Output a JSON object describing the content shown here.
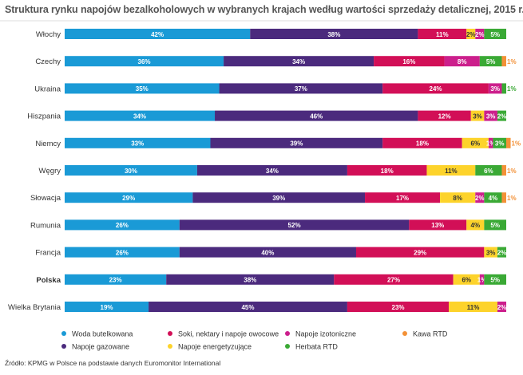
{
  "source": "Źródło: KPMG w Polsce na podstawie danych Euromonitor International",
  "chart_data": {
    "type": "bar",
    "orientation": "horizontal",
    "stacked": true,
    "title": "Struktura rynku napojów bezalkoholowych w wybranych krajach według wartości sprzedaży detalicznej, 2015 r.",
    "xlabel": "",
    "ylabel": "",
    "xlim": [
      0,
      100
    ],
    "legend_position": "bottom",
    "highlight_category": "Polska",
    "categories": [
      "Włochy",
      "Czechy",
      "Ukraina",
      "Hiszpania",
      "Niemcy",
      "Węgry",
      "Słowacja",
      "Rumunia",
      "Francja",
      "Polska",
      "Wielka Brytania"
    ],
    "series": [
      {
        "name": "Woda butelkowana",
        "color": "#1a9ad6",
        "values": [
          42,
          36,
          35,
          34,
          33,
          30,
          29,
          26,
          26,
          23,
          19
        ]
      },
      {
        "name": "Napoje gazowane",
        "color": "#4b2a7d",
        "values": [
          38,
          34,
          37,
          46,
          39,
          34,
          39,
          52,
          40,
          38,
          45
        ]
      },
      {
        "name": "Soki, nektary i napoje owocowe",
        "color": "#d20f57",
        "values": [
          11,
          16,
          24,
          12,
          18,
          18,
          17,
          13,
          29,
          27,
          23
        ]
      },
      {
        "name": "Napoje energetyzujące",
        "color": "#fdd32b",
        "values": [
          2,
          0,
          0,
          3,
          6,
          11,
          8,
          4,
          3,
          6,
          11
        ]
      },
      {
        "name": "Napoje izotoniczne",
        "color": "#cc1f8c",
        "values": [
          2,
          8,
          3,
          3,
          1,
          0,
          2,
          0,
          0,
          1,
          2
        ]
      },
      {
        "name": "Herbata RTD",
        "color": "#3aa935",
        "values": [
          5,
          5,
          1,
          2,
          3,
          6,
          4,
          5,
          2,
          5,
          0
        ]
      },
      {
        "name": "Kawa RTD",
        "color": "#f39137",
        "values": [
          0,
          1,
          0,
          0,
          1,
          1,
          1,
          0,
          0,
          0,
          0
        ]
      }
    ],
    "data_labels": [
      [
        "42%",
        "38%",
        "11%",
        "2%",
        "2%",
        "5%",
        ""
      ],
      [
        "36%",
        "34%",
        "16%",
        "",
        "8%",
        "5%",
        "1%"
      ],
      [
        "35%",
        "37%",
        "24%",
        "",
        "3%",
        "1%",
        ""
      ],
      [
        "34%",
        "46%",
        "12%",
        "3%",
        "3%",
        "2%",
        ""
      ],
      [
        "33%",
        "39%",
        "18%",
        "6%",
        "1%",
        "3%",
        "1%"
      ],
      [
        "30%",
        "34%",
        "18%",
        "11%",
        "",
        "6%",
        "1%"
      ],
      [
        "29%",
        "39%",
        "17%",
        "8%",
        "2%",
        "4%",
        "1%"
      ],
      [
        "26%",
        "52%",
        "13%",
        "4%",
        "",
        "5%",
        ""
      ],
      [
        "26%",
        "40%",
        "29%",
        "3%",
        "",
        "2%",
        ""
      ],
      [
        "23%",
        "38%",
        "27%",
        "6%",
        "1%",
        "5%",
        ""
      ],
      [
        "19%",
        "45%",
        "23%",
        "11%",
        "2%",
        "",
        ""
      ]
    ],
    "legend_order": [
      [
        "Woda butelkowana",
        "Soki, nektary i napoje owocowe",
        "Napoje izotoniczne",
        "Kawa RTD"
      ],
      [
        "Napoje gazowane",
        "Napoje energetyzujące",
        "Herbata RTD"
      ]
    ]
  }
}
